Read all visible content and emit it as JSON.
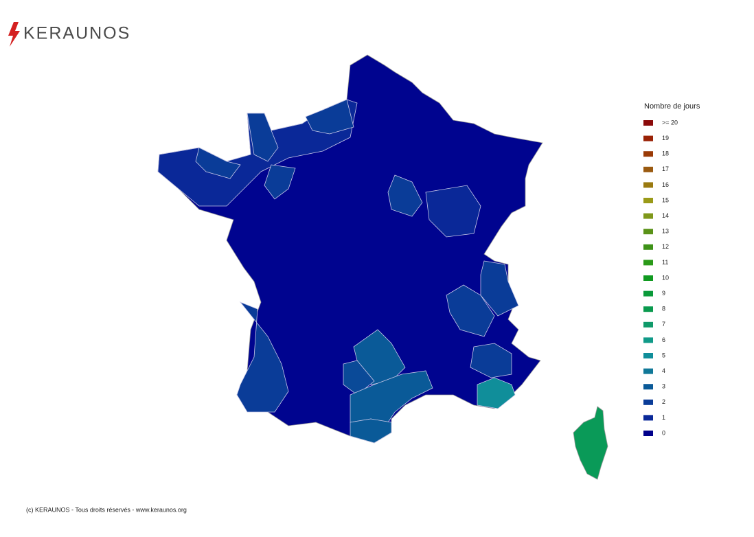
{
  "header": {
    "logo": "KERAUNOS"
  },
  "legend": {
    "title": "Nombre de jours",
    "items": [
      {
        "label": ">= 20",
        "color": "#8b0a0a"
      },
      {
        "label": "19",
        "color": "#9a2206"
      },
      {
        "label": "18",
        "color": "#9a3a06"
      },
      {
        "label": "17",
        "color": "#9a5a10"
      },
      {
        "label": "16",
        "color": "#9a7a10"
      },
      {
        "label": "15",
        "color": "#9a9a18"
      },
      {
        "label": "14",
        "color": "#7f981a"
      },
      {
        "label": "13",
        "color": "#5a9218"
      },
      {
        "label": "12",
        "color": "#3e9218"
      },
      {
        "label": "11",
        "color": "#2a9a18"
      },
      {
        "label": "10",
        "color": "#109a20"
      },
      {
        "label": "9",
        "color": "#0a9a3a"
      },
      {
        "label": "8",
        "color": "#0a9a4e"
      },
      {
        "label": "7",
        "color": "#109a6a"
      },
      {
        "label": "6",
        "color": "#109a88"
      },
      {
        "label": "5",
        "color": "#108e9a"
      },
      {
        "label": "4",
        "color": "#107898"
      },
      {
        "label": "3",
        "color": "#0a5a98"
      },
      {
        "label": "2",
        "color": "#0a3c98"
      },
      {
        "label": "1",
        "color": "#0a2898"
      },
      {
        "label": "0",
        "color": "#00008b"
      }
    ]
  },
  "footer": {
    "copyright": "(c) KERAUNOS - Tous droits réservés - www.keraunos.org"
  }
}
